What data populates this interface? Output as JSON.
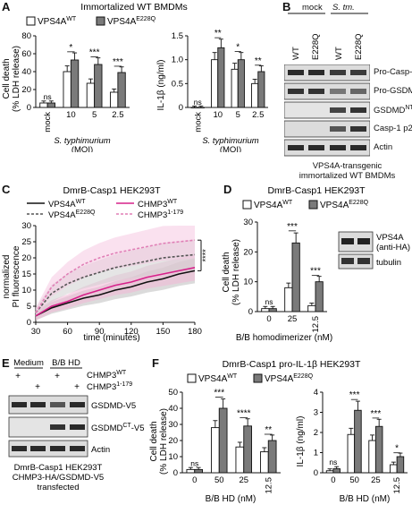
{
  "panels": {
    "A": {
      "letter": "A",
      "title": "Immortalized WT BMDMs",
      "legend": [
        "VPS4A",
        "WT",
        "VPS4A",
        "E228Q"
      ],
      "left": {
        "ylabel1": "Cell death",
        "ylabel2": "(% LDH release)",
        "yticks": [
          "0",
          "20",
          "40",
          "60",
          "80"
        ],
        "xticks": [
          "mock",
          "10",
          "5",
          "2.5"
        ],
        "xgroup": "S. typhimurium",
        "xunit": "(MOI)",
        "stars": [
          "ns",
          "*",
          "***",
          "***"
        ]
      },
      "right": {
        "ylabel": "IL-1β (ng/ml)",
        "yticks": [
          "0",
          "0.5",
          "1.0",
          "1.5"
        ],
        "xticks": [
          "mock",
          "10",
          "5",
          "2.5"
        ],
        "xgroup": "S. typhimurium",
        "xunit": "(MOI)",
        "stars": [
          "ns",
          "**",
          "*",
          "**"
        ]
      }
    },
    "B": {
      "letter": "B",
      "groups": [
        "mock",
        "S. tm."
      ],
      "lanes": [
        "WT",
        "E228Q",
        "WT",
        "E228Q"
      ],
      "bands": [
        "Pro-Casp-1",
        "Pro-GSDMD",
        "GSDMD",
        "NT",
        "Casp-1 p20",
        "Actin"
      ],
      "caption1": "VPS4A-transgenic",
      "caption2": "immortalized WT BMDMs"
    },
    "C": {
      "letter": "C",
      "title": "DmrB-Casp1 HEK293T",
      "legend": [
        "VPS4A",
        "WT",
        "CHMP3",
        "WT",
        "VPS4A",
        "E228Q",
        "CHMP3",
        "1-179"
      ],
      "ylabel1": "normalized",
      "ylabel2": "PI fluorescence",
      "xlabel": "time (minutes)",
      "yticks": [
        "0",
        "5",
        "10",
        "15",
        "20",
        "25",
        "30"
      ],
      "xticks": [
        "30",
        "60",
        "90",
        "120",
        "150",
        "180"
      ],
      "sig": "****"
    },
    "D": {
      "letter": "D",
      "title": "DmrB-Casp1 HEK293T",
      "legend": [
        "VPS4A",
        "WT",
        "VPS4A",
        "E228Q"
      ],
      "ylabel1": "Cell death",
      "ylabel2": "(% LDH release)",
      "yticks": [
        "0",
        "10",
        "20",
        "30"
      ],
      "xticks": [
        "0",
        "25",
        "12.5"
      ],
      "xlabel": "B/B homodimerizer (nM)",
      "stars": [
        "ns",
        "***",
        "***"
      ],
      "blot": [
        "VPS4A",
        "(anti-HA)",
        "tubulin"
      ]
    },
    "E": {
      "letter": "E",
      "groups": [
        "Medium",
        "B/B HD"
      ],
      "row1": [
        "+",
        "",
        "+",
        ""
      ],
      "row2": [
        "",
        "+",
        "",
        "+"
      ],
      "rowlabels": [
        "CHMP3",
        "WT",
        "CHMP3",
        "1-179"
      ],
      "bands": [
        "GSDMD-V5",
        "GSDMD",
        "CT",
        "-V5",
        "Actin"
      ],
      "caption1": "DmrB-Casp1 HEK293T",
      "caption2": "CHMP3-HA/GSDMD-V5",
      "caption3": "transfected"
    },
    "F": {
      "letter": "F",
      "title": "DmrB-Casp1 pro-IL-1β HEK293T",
      "legend": [
        "VPS4A",
        "WT",
        "VPS4A",
        "E228Q"
      ],
      "left": {
        "ylabel1": "Cell death",
        "ylabel2": "(% LDH release)",
        "yticks": [
          "0",
          "10",
          "20",
          "30",
          "40",
          "50"
        ],
        "xticks": [
          "0",
          "50",
          "25",
          "12.5"
        ],
        "xlabel": "B/B HD (nM)",
        "stars": [
          "ns",
          "***",
          "****",
          "**"
        ]
      },
      "right": {
        "ylabel": "IL-1β (ng/ml)",
        "yticks": [
          "0",
          "1",
          "2",
          "3",
          "4"
        ],
        "xticks": [
          "0",
          "50",
          "25",
          "12.5"
        ],
        "xlabel": "B/B HD (nM)",
        "stars": [
          "ns",
          "***",
          "***",
          "*"
        ]
      }
    }
  },
  "colors": {
    "wt": "#ffffff",
    "mut": "#7a7a7a",
    "vps_wt": "#111111",
    "vps_mut": "#555555",
    "chmp_wt": "#d6218a",
    "chmp_trunc": "#e07fb6",
    "band": "#2a2a2a"
  },
  "chart_data": [
    {
      "type": "bar",
      "panel": "A-left",
      "categories": [
        "mock",
        "10",
        "5",
        "2.5"
      ],
      "series": [
        {
          "name": "VPS4A WT",
          "values": [
            5,
            40,
            27,
            17
          ]
        },
        {
          "name": "VPS4A E228Q",
          "values": [
            5,
            53,
            48,
            39
          ]
        }
      ],
      "ylim": [
        0,
        80
      ]
    },
    {
      "type": "bar",
      "panel": "A-right",
      "categories": [
        "mock",
        "10",
        "5",
        "2.5"
      ],
      "series": [
        {
          "name": "VPS4A WT",
          "values": [
            0,
            1.0,
            0.8,
            0.5
          ]
        },
        {
          "name": "VPS4A E228Q",
          "values": [
            0,
            1.25,
            1.0,
            0.75
          ]
        }
      ],
      "ylim": [
        0,
        1.5
      ]
    },
    {
      "type": "line",
      "panel": "C",
      "x": [
        30,
        45,
        60,
        75,
        90,
        105,
        120,
        135,
        150,
        165,
        180
      ],
      "series": [
        {
          "name": "VPS4A WT",
          "values": [
            2,
            4.5,
            6,
            7.5,
            8.5,
            10,
            11,
            12.5,
            13.5,
            15,
            16
          ]
        },
        {
          "name": "CHMP3 WT",
          "values": [
            2,
            5,
            6.5,
            8.5,
            10,
            11.5,
            12.5,
            14,
            15,
            16,
            17
          ]
        },
        {
          "name": "VPS4A E228Q",
          "values": [
            3,
            9,
            12,
            14,
            15.5,
            17,
            18,
            19,
            20,
            20.5,
            21
          ]
        },
        {
          "name": "CHMP3 1-179",
          "values": [
            3,
            11,
            15,
            18,
            20,
            21.5,
            22.5,
            23.5,
            24.5,
            25,
            25.5
          ]
        }
      ],
      "ylim": [
        0,
        30
      ],
      "xlim": [
        30,
        180
      ]
    },
    {
      "type": "bar",
      "panel": "D",
      "categories": [
        "0",
        "25",
        "12.5"
      ],
      "series": [
        {
          "name": "VPS4A WT",
          "values": [
            1,
            8,
            2
          ]
        },
        {
          "name": "VPS4A E228Q",
          "values": [
            1,
            23,
            10
          ]
        }
      ],
      "ylim": [
        0,
        30
      ]
    },
    {
      "type": "bar",
      "panel": "F-left",
      "categories": [
        "0",
        "50",
        "25",
        "12.5"
      ],
      "series": [
        {
          "name": "VPS4A WT",
          "values": [
            2,
            28,
            16,
            13
          ]
        },
        {
          "name": "VPS4A E228Q",
          "values": [
            2,
            40,
            29,
            20
          ]
        }
      ],
      "ylim": [
        0,
        50
      ]
    },
    {
      "type": "bar",
      "panel": "F-right",
      "categories": [
        "0",
        "50",
        "25",
        "12.5"
      ],
      "series": [
        {
          "name": "VPS4A WT",
          "values": [
            0.1,
            1.9,
            1.6,
            0.4
          ]
        },
        {
          "name": "VPS4A E228Q",
          "values": [
            0.2,
            3.1,
            2.3,
            0.8
          ]
        }
      ],
      "ylim": [
        0,
        4
      ]
    }
  ]
}
